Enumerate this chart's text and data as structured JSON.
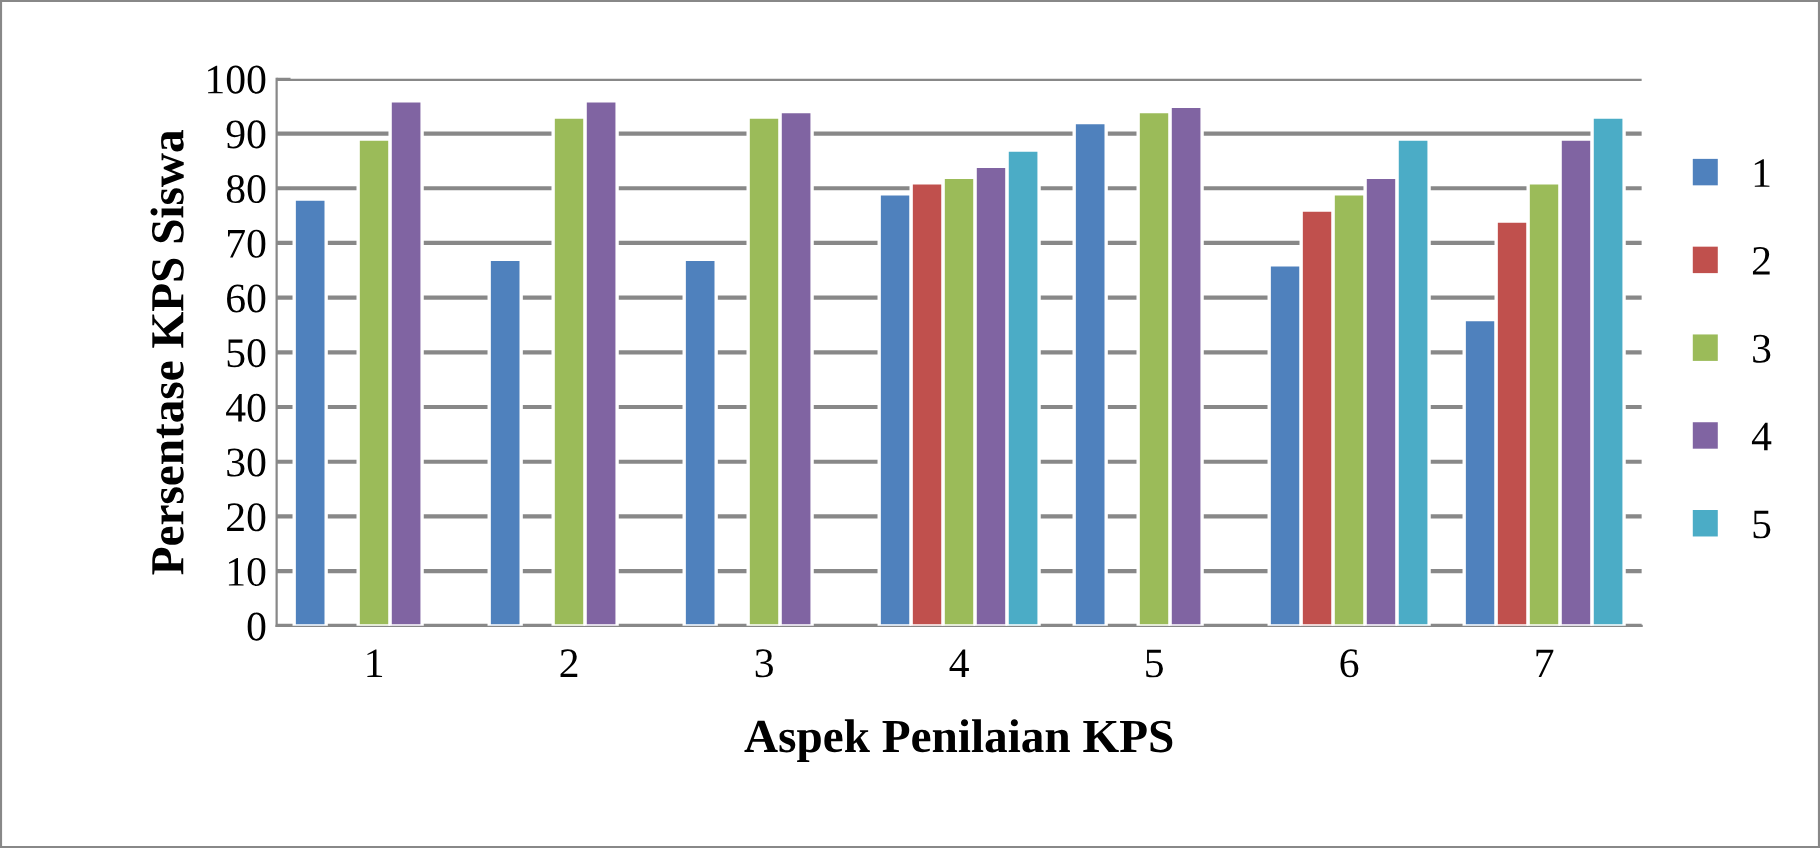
{
  "chart_data": {
    "type": "bar",
    "xlabel": "Aspek Penilaian KPS",
    "ylabel": "Persentase KPS Siswa",
    "categories": [
      "1",
      "2",
      "3",
      "4",
      "5",
      "6",
      "7"
    ],
    "series": [
      {
        "name": "1",
        "color": "#4f81bd",
        "values": [
          78,
          67,
          67,
          79,
          92,
          66,
          56
        ]
      },
      {
        "name": "2",
        "color": "#c0504d",
        "values": [
          null,
          null,
          null,
          81,
          null,
          76,
          74
        ]
      },
      {
        "name": "3",
        "color": "#9bbb59",
        "values": [
          89,
          93,
          93,
          82,
          94,
          79,
          81
        ]
      },
      {
        "name": "4",
        "color": "#8064a2",
        "values": [
          96,
          96,
          94,
          84,
          95,
          82,
          89
        ]
      },
      {
        "name": "5",
        "color": "#4bacc6",
        "values": [
          null,
          null,
          null,
          87,
          null,
          89,
          93
        ]
      }
    ],
    "ylim": [
      0,
      100
    ],
    "yticks": [
      0,
      10,
      20,
      30,
      40,
      50,
      60,
      70,
      80,
      90,
      100
    ],
    "grid": "y",
    "legend": "right"
  }
}
